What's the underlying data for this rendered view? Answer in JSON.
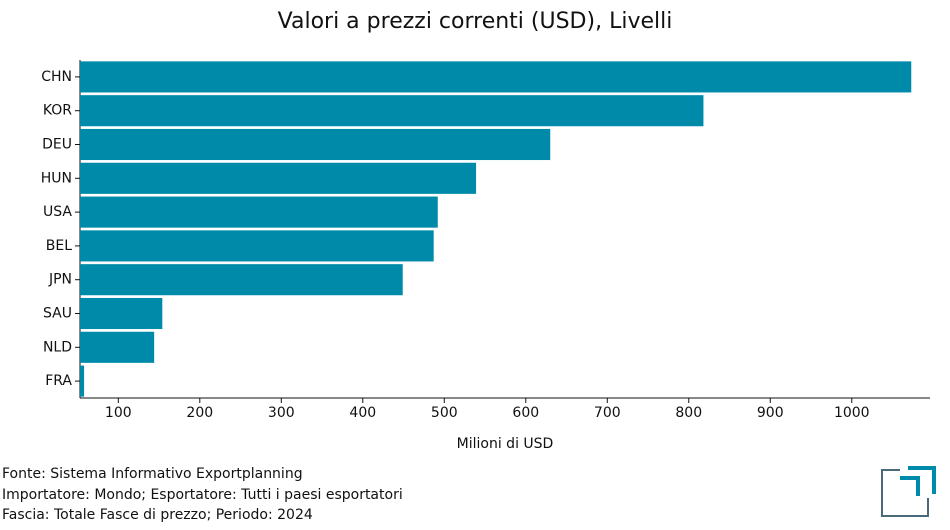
{
  "chart_data": {
    "type": "barh",
    "title": "Valori a prezzi correnti (USD), Livelli",
    "categories": [
      "CHN",
      "KOR",
      "DEU",
      "HUN",
      "USA",
      "BEL",
      "JPN",
      "SAU",
      "NLD",
      "FRA"
    ],
    "values": [
      1073,
      818,
      630,
      539,
      492,
      487,
      449,
      154,
      144,
      58
    ],
    "color": "#008aaa",
    "xlabel": "Milioni di USD",
    "xlim": [
      53,
      1096
    ],
    "xticks": [
      100,
      200,
      300,
      400,
      500,
      600,
      700,
      800,
      900,
      1000
    ],
    "notes": [
      "Fonte: Sistema Informativo Exportplanning",
      "Importatore: Mondo; Esportatore: Tutti i paesi esportatori",
      "Fascia: Totale Fasce di prezzo; Periodo: 2024"
    ]
  }
}
